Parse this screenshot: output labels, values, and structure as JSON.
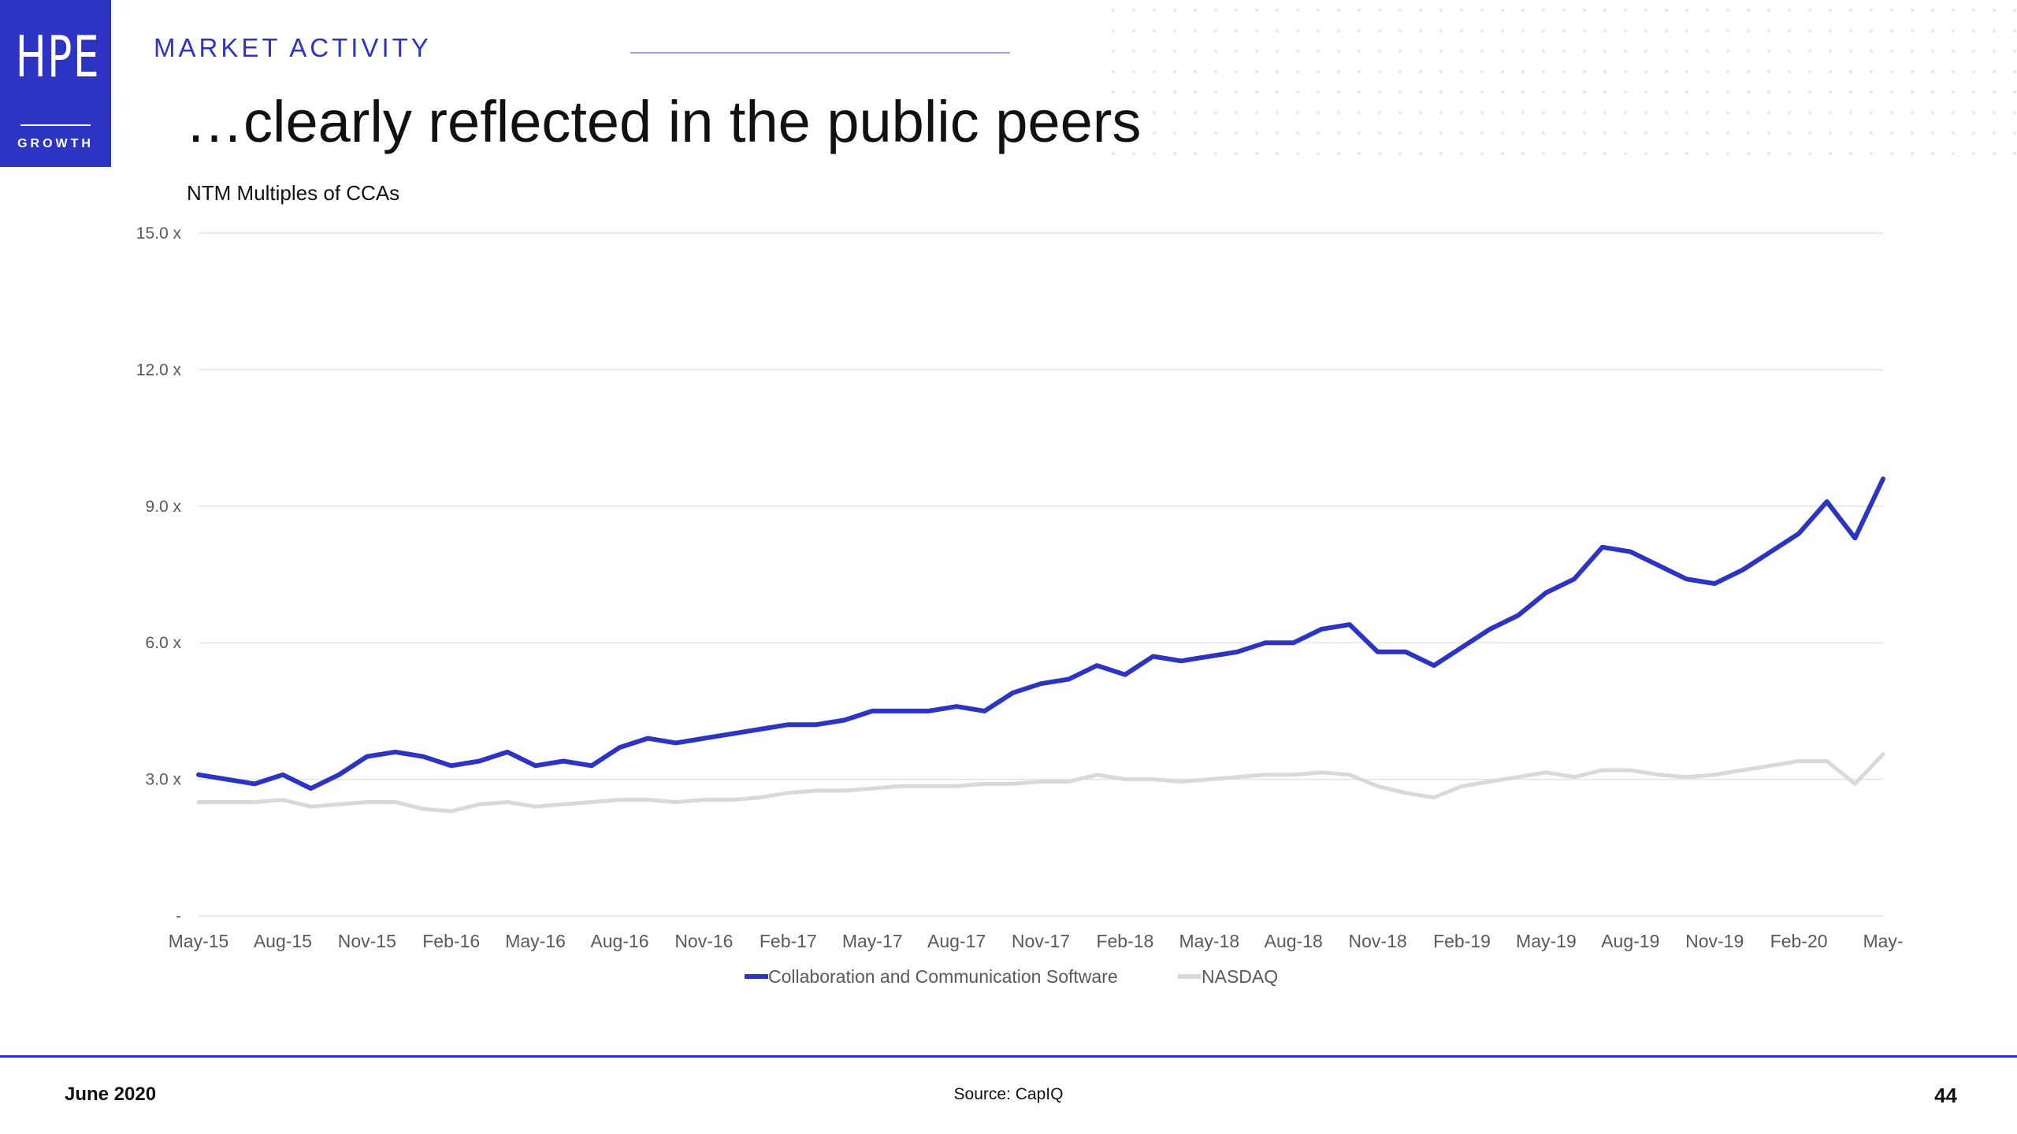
{
  "header": {
    "logo_text": "HPE",
    "logo_subtext": "GROWTH",
    "kicker": "MARKET ACTIVITY",
    "title": "…clearly reflected in the public peers"
  },
  "footer": {
    "date": "June 2020",
    "source": "Source: CapIQ",
    "page": "44"
  },
  "colors": {
    "brand": "#2d34c3",
    "series_primary": "#2d34c3",
    "series_secondary": "#d9d9d9",
    "grid": "#e3e3e3",
    "tick_text": "#595959"
  },
  "chart_data": {
    "type": "line",
    "title": "NTM Multiples of CCAs",
    "xlabel": "",
    "ylabel": "",
    "ylim": [
      0,
      15
    ],
    "yticks": [
      0,
      3,
      6,
      9,
      12,
      15
    ],
    "ytick_labels": [
      "-",
      "3.0 x",
      "6.0 x",
      "9.0 x",
      "12.0 x",
      "15.0 x"
    ],
    "x_start": "2015-05",
    "x_end": "2020-05",
    "x_tick_labels": [
      "May-15",
      "Aug-15",
      "Nov-15",
      "Feb-16",
      "May-16",
      "Aug-16",
      "Nov-16",
      "Feb-17",
      "May-17",
      "Aug-17",
      "Nov-17",
      "Feb-18",
      "May-18",
      "Aug-18",
      "Nov-18",
      "Feb-19",
      "May-19",
      "Aug-19",
      "Nov-19",
      "Feb-20",
      "May-"
    ],
    "grid": true,
    "legend_position": "bottom",
    "series": [
      {
        "name": "Collaboration and Communication Software",
        "color": "#2d34c3",
        "x": [
          "2015-05",
          "2015-06",
          "2015-07",
          "2015-08",
          "2015-09",
          "2015-10",
          "2015-11",
          "2015-12",
          "2016-01",
          "2016-02",
          "2016-03",
          "2016-04",
          "2016-05",
          "2016-06",
          "2016-07",
          "2016-08",
          "2016-09",
          "2016-10",
          "2016-11",
          "2016-12",
          "2017-01",
          "2017-02",
          "2017-03",
          "2017-04",
          "2017-05",
          "2017-06",
          "2017-07",
          "2017-08",
          "2017-09",
          "2017-10",
          "2017-11",
          "2017-12",
          "2018-01",
          "2018-02",
          "2018-03",
          "2018-04",
          "2018-05",
          "2018-06",
          "2018-07",
          "2018-08",
          "2018-09",
          "2018-10",
          "2018-11",
          "2018-12",
          "2019-01",
          "2019-02",
          "2019-03",
          "2019-04",
          "2019-05",
          "2019-06",
          "2019-07",
          "2019-08",
          "2019-09",
          "2019-10",
          "2019-11",
          "2019-12",
          "2020-01",
          "2020-02",
          "2020-03",
          "2020-04",
          "2020-05"
        ],
        "values": [
          3.1,
          3.0,
          2.9,
          3.1,
          2.8,
          3.1,
          3.5,
          3.6,
          3.5,
          3.3,
          3.4,
          3.6,
          3.3,
          3.4,
          3.3,
          3.7,
          3.9,
          3.8,
          3.9,
          4.0,
          4.1,
          4.2,
          4.2,
          4.3,
          4.5,
          4.5,
          4.5,
          4.6,
          4.5,
          4.9,
          5.1,
          5.2,
          5.5,
          5.3,
          5.7,
          5.6,
          5.7,
          5.8,
          6.0,
          6.0,
          6.3,
          6.4,
          5.8,
          5.8,
          5.5,
          5.9,
          6.3,
          6.6,
          7.1,
          7.4,
          8.1,
          8.0,
          7.7,
          7.4,
          7.3,
          7.6,
          8.0,
          8.4,
          9.1,
          8.3,
          9.6
        ]
      },
      {
        "name": "NASDAQ",
        "color": "#d9d9d9",
        "x": [
          "2015-05",
          "2015-06",
          "2015-07",
          "2015-08",
          "2015-09",
          "2015-10",
          "2015-11",
          "2015-12",
          "2016-01",
          "2016-02",
          "2016-03",
          "2016-04",
          "2016-05",
          "2016-06",
          "2016-07",
          "2016-08",
          "2016-09",
          "2016-10",
          "2016-11",
          "2016-12",
          "2017-01",
          "2017-02",
          "2017-03",
          "2017-04",
          "2017-05",
          "2017-06",
          "2017-07",
          "2017-08",
          "2017-09",
          "2017-10",
          "2017-11",
          "2017-12",
          "2018-01",
          "2018-02",
          "2018-03",
          "2018-04",
          "2018-05",
          "2018-06",
          "2018-07",
          "2018-08",
          "2018-09",
          "2018-10",
          "2018-11",
          "2018-12",
          "2019-01",
          "2019-02",
          "2019-03",
          "2019-04",
          "2019-05",
          "2019-06",
          "2019-07",
          "2019-08",
          "2019-09",
          "2019-10",
          "2019-11",
          "2019-12",
          "2020-01",
          "2020-02",
          "2020-03",
          "2020-04",
          "2020-05"
        ],
        "values": [
          2.5,
          2.5,
          2.5,
          2.55,
          2.4,
          2.45,
          2.5,
          2.5,
          2.35,
          2.3,
          2.45,
          2.5,
          2.4,
          2.45,
          2.5,
          2.55,
          2.55,
          2.5,
          2.55,
          2.55,
          2.6,
          2.7,
          2.75,
          2.75,
          2.8,
          2.85,
          2.85,
          2.85,
          2.9,
          2.9,
          2.95,
          2.95,
          3.1,
          3.0,
          3.0,
          2.95,
          3.0,
          3.05,
          3.1,
          3.1,
          3.15,
          3.1,
          2.85,
          2.7,
          2.6,
          2.85,
          2.95,
          3.05,
          3.15,
          3.05,
          3.2,
          3.2,
          3.1,
          3.05,
          3.1,
          3.2,
          3.3,
          3.4,
          3.4,
          2.9,
          3.55
        ]
      }
    ]
  }
}
